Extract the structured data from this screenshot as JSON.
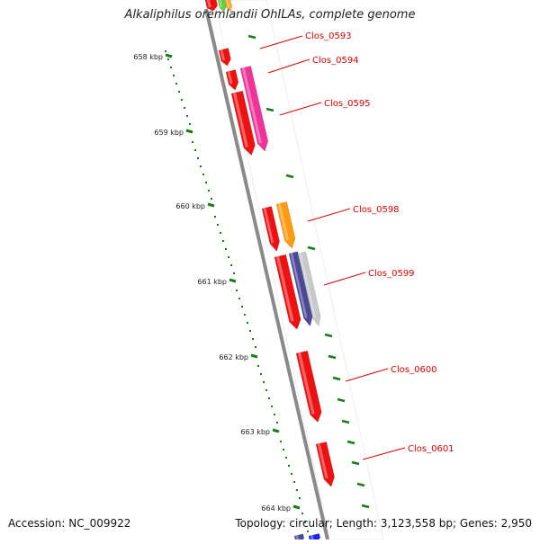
{
  "title": "Alkaliphilus oremlandii OhILAs, complete genome",
  "footer": {
    "accession": "Accession: NC_009922",
    "summary": "Topology: circular; Length: 3,123,558 bp; Genes: 2,950"
  },
  "colors": {
    "backbone": "#8a8a8a",
    "label": "#dd0000",
    "scale_tick": "#1a7a1a",
    "gene_red": "#ee1111",
    "gene_magenta": "#ee3399",
    "gene_orange": "#ff9911",
    "gene_navy": "#4a4a99",
    "gene_gray": "#c8c8c8"
  },
  "scale": {
    "ticks": [
      "658 kbp",
      "659 kbp",
      "660 kbp",
      "661 kbp",
      "662 kbp",
      "663 kbp",
      "664 kbp"
    ]
  },
  "genes": [
    {
      "label": "Clos_0593"
    },
    {
      "label": "Clos_0594"
    },
    {
      "label": "Clos_0595"
    },
    {
      "label": "Clos_0598"
    },
    {
      "label": "Clos_0599"
    },
    {
      "label": "Clos_0600"
    },
    {
      "label": "Clos_0601"
    }
  ]
}
